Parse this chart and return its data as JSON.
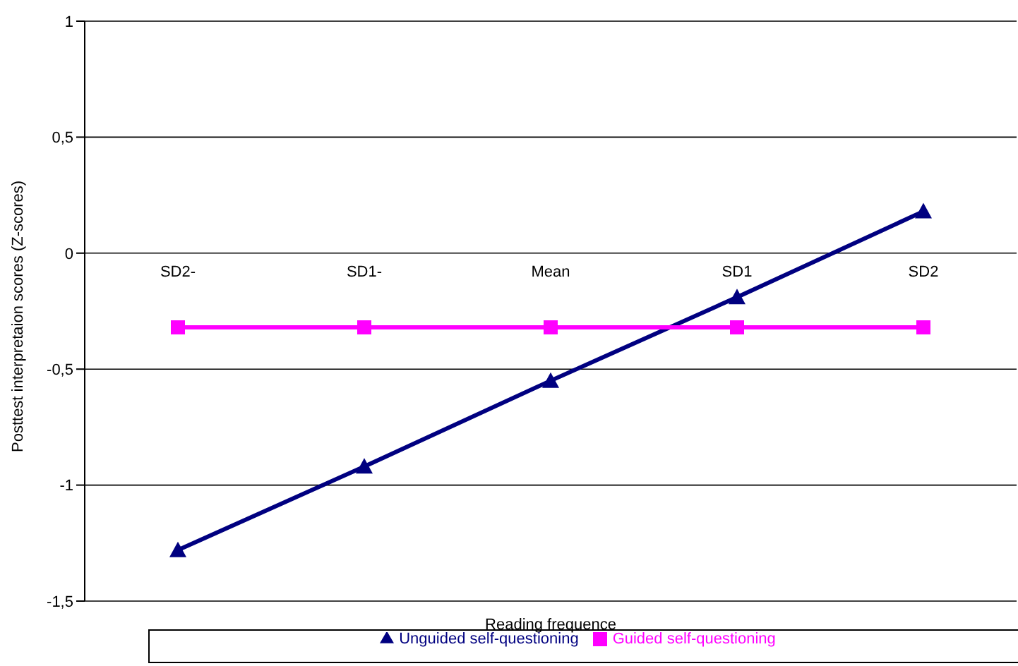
{
  "chart_data": {
    "type": "line",
    "xlabel": "Reading frequence",
    "ylabel": "Posttest interpretaion scores (Z-scores)",
    "categories": [
      "SD2-",
      "SD1-",
      "Mean",
      "SD1",
      "SD2"
    ],
    "series": [
      {
        "name": "Unguided self-questioning",
        "color": "#000080",
        "marker": "triangle",
        "values": [
          -1.28,
          -0.92,
          -0.55,
          -0.19,
          0.18
        ]
      },
      {
        "name": "Guided self-questioning",
        "color": "#ff00ff",
        "marker": "square",
        "values": [
          -0.32,
          -0.32,
          -0.32,
          -0.32,
          -0.32
        ]
      }
    ],
    "ylim": [
      -1.5,
      1
    ],
    "yticks": [
      1,
      {
        "value": 0.5,
        "label": "0,5"
      },
      0,
      {
        "value": -0.5,
        "label": "-0,5"
      },
      -1,
      {
        "value": -1.5,
        "label": "-1,5"
      }
    ],
    "grid": "y",
    "legend": "bottom",
    "line_style": "solid"
  }
}
